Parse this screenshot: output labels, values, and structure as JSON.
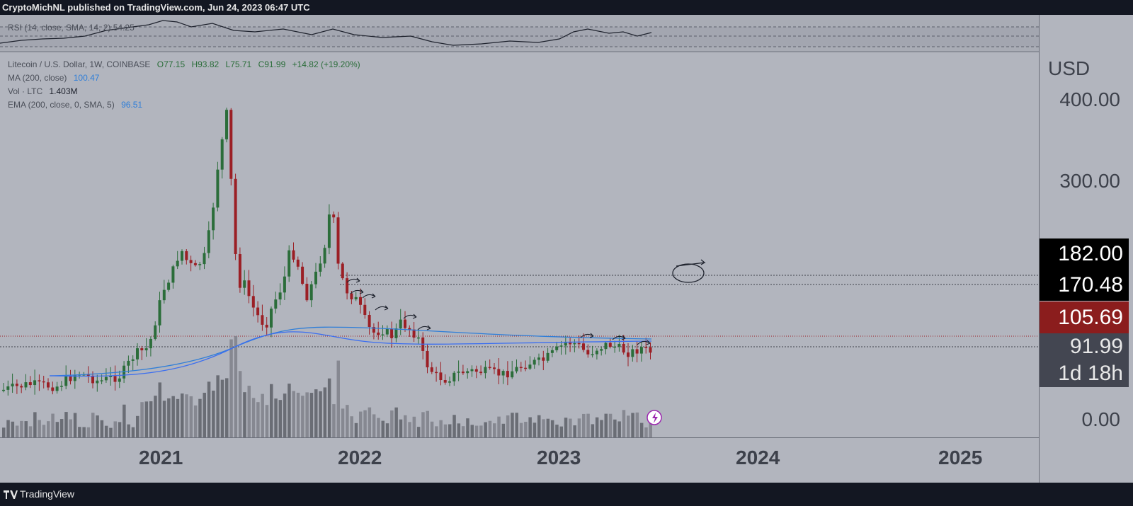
{
  "header": {
    "publish_line": "CryptoMichNL published on TradingView.com, Jun 24, 2023 06:47 UTC"
  },
  "rsi_pane": {
    "label": "RSI (14, close, SMA, 14, 2)  54.25"
  },
  "legend": {
    "symbol": "Litecoin / U.S. Dollar, 1W, COINBASE",
    "open": "O77.15",
    "high": "H93.82",
    "low": "L75.71",
    "close": "C91.99",
    "change": "+14.82 (+19.20%)",
    "ma_label": "MA (200, close)",
    "ma_value": "100.47",
    "vol_label": "Vol · LTC",
    "vol_value": "1.403M",
    "ema_label": "EMA (200, close, 0, SMA, 5)",
    "ema_value": "96.51"
  },
  "price_axis": {
    "currency": "USD",
    "ticks": [
      "400.00",
      "300.00",
      "0.00"
    ],
    "tag_182": "182.00",
    "tag_170": "170.48",
    "tag_105": "105.69",
    "tag_current": "91.99",
    "tag_countdown": "1d 18h"
  },
  "time_axis": {
    "years": [
      "2021",
      "2022",
      "2023",
      "2024",
      "2025"
    ]
  },
  "footer": {
    "brand": "TradingView"
  },
  "colors": {
    "background": "#b2b5be",
    "bull": "#2b6d3a",
    "bear": "#9b1f25",
    "ma_line": "#2f7ed8",
    "ema_line": "#3b6ef0"
  },
  "chart_data": {
    "type": "candlestick",
    "title": "Litecoin / U.S. Dollar, 1W, COINBASE",
    "y_axis_label": "USD",
    "x_ticks": [
      "2021",
      "2022",
      "2023",
      "2024",
      "2025"
    ],
    "y_ticks": [
      400,
      300,
      0
    ],
    "annotated_levels": [
      182.0,
      170.48,
      105.69,
      91.99
    ],
    "last_candle": {
      "open": 77.15,
      "high": 93.82,
      "low": 75.71,
      "close": 91.99
    },
    "ma_200": 100.47,
    "ema_200": 96.51,
    "volume": "1.403M"
  }
}
